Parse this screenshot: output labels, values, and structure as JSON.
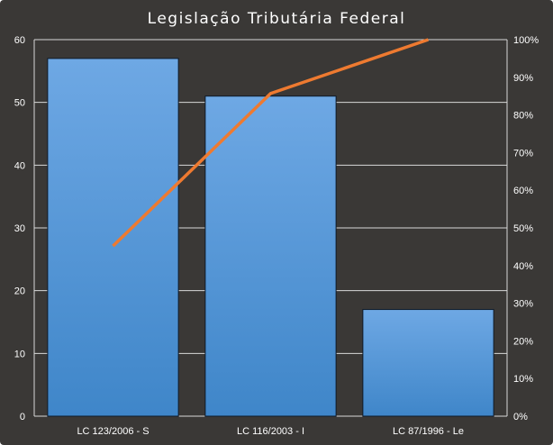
{
  "chart_data": {
    "type": "bar",
    "title": "Legislação  Tributária  Federal",
    "categories": [
      "LC 123/2006 - S",
      "LC 116/2003 - I",
      "LC 87/1996 - Le"
    ],
    "series": [
      {
        "type": "bar",
        "values": [
          57,
          51,
          17
        ],
        "axis": "left"
      },
      {
        "type": "line",
        "values": [
          45.2,
          85.7,
          100
        ],
        "axis": "right"
      }
    ],
    "left_axis": {
      "ylim": [
        0,
        60
      ],
      "ticks": [
        "0",
        "10",
        "20",
        "30",
        "40",
        "50",
        "60"
      ]
    },
    "right_axis": {
      "ylim": [
        0,
        100
      ],
      "ticks": [
        "0%",
        "10%",
        "20%",
        "30%",
        "40%",
        "50%",
        "60%",
        "70%",
        "80%",
        "90%",
        "100%"
      ]
    },
    "grid": true,
    "legend": "none",
    "colors": {
      "background": "#3a3836",
      "bar_top": "#6ea8e4",
      "bar_bottom": "#3f86c9",
      "bar_edge": "#0d1a2a",
      "line": "#ee7a30",
      "grid": "#d8d8d8",
      "text": "#ffffff"
    }
  }
}
